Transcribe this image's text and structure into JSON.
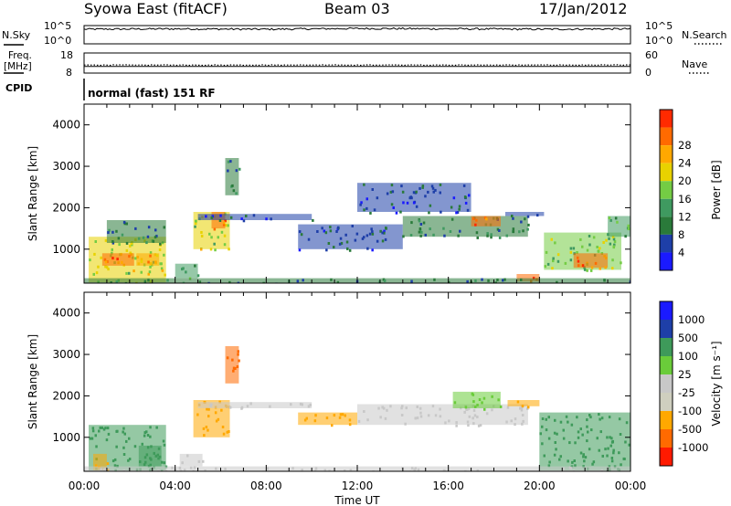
{
  "header": {
    "title": "Syowa East (fitACF)",
    "beam": "Beam 03",
    "date": "17/Jan/2012"
  },
  "top_panels": {
    "nsky_label": "N.Sky",
    "nsearch_label": "N.Search",
    "nsky_ticks": [
      "10^5",
      "10^0"
    ],
    "freq_label_1": "Freq.",
    "freq_label_2": "[MHz]",
    "freq_ticks": [
      "18",
      "8"
    ],
    "nave_ticks": [
      "60",
      "0"
    ],
    "nave_label": "Nave",
    "cpid_label": "CPID",
    "cpid_text": "normal (fast) 151 RF"
  },
  "x_axis": {
    "label": "Time UT",
    "ticks": [
      "00:00",
      "04:00",
      "08:00",
      "12:00",
      "16:00",
      "20:00",
      "00:00"
    ]
  },
  "colors": {
    "power": [
      "#1a1aff",
      "#1e3fa8",
      "#2a7a3a",
      "#3f9a60",
      "#74cc44",
      "#e8d200",
      "#ffa800",
      "#ff6a00",
      "#ff2a00"
    ],
    "velocity": [
      "#ff1a00",
      "#ff6a00",
      "#ffa800",
      "#cfcfbf",
      "#c8c8c8",
      "#6acc3a",
      "#3e9a5a",
      "#1e3fa8",
      "#1a1aff"
    ]
  },
  "chart_data": [
    {
      "type": "line",
      "title": "N.Sky / N.Search",
      "ylabel": "N.Sky",
      "y2label": "N.Search",
      "ylim": [
        0,
        5
      ],
      "yscale": "log10",
      "x": [
        "00:00",
        "04:00",
        "08:00",
        "12:00",
        "16:00",
        "20:00",
        "24:00"
      ],
      "series": [
        {
          "name": "N.Sky",
          "values": [
            4.0,
            4.1,
            4.0,
            4.2,
            4.1,
            4.0,
            4.1
          ]
        },
        {
          "name": "N.Search",
          "values": [
            4.1,
            4.1,
            4.0,
            4.1,
            4.1,
            4.1,
            4.1
          ]
        }
      ]
    },
    {
      "type": "line",
      "title": "Freq. / Nave",
      "ylabel": "Freq. [MHz]",
      "ylim": [
        8,
        18
      ],
      "y2label": "Nave",
      "y2lim": [
        0,
        60
      ],
      "x": [
        "00:00",
        "04:00",
        "08:00",
        "12:00",
        "16:00",
        "20:00",
        "24:00"
      ],
      "series": [
        {
          "name": "Freq.",
          "values": [
            12,
            12,
            12,
            12,
            12,
            12,
            12
          ]
        },
        {
          "name": "Nave",
          "values": [
            20,
            20,
            20,
            20,
            20,
            20,
            20
          ]
        }
      ]
    },
    {
      "type": "heatmap",
      "title": "Power",
      "xlabel": "Time UT",
      "ylabel": "Slant Range [km]",
      "xlim": [
        "00:00",
        "24:00"
      ],
      "ylim": [
        180,
        4500
      ],
      "yticks": [
        1000,
        2000,
        3000,
        4000
      ],
      "colorbar": {
        "label": "Power [dB]",
        "min": 0,
        "max": 32,
        "ticks": [
          4,
          8,
          12,
          16,
          20,
          24,
          28
        ]
      },
      "regions": [
        {
          "t0": 0.2,
          "t1": 3.6,
          "r0": 200,
          "r1": 1300,
          "value": 18
        },
        {
          "t0": 0.8,
          "t1": 2.2,
          "r0": 600,
          "r1": 900,
          "value": 26
        },
        {
          "t0": 2.3,
          "t1": 3.3,
          "r0": 600,
          "r1": 900,
          "value": 22
        },
        {
          "t0": 1.0,
          "t1": 3.6,
          "r0": 1150,
          "r1": 1700,
          "value": 8
        },
        {
          "t0": 4.0,
          "t1": 5.0,
          "r0": 300,
          "r1": 650,
          "value": 12
        },
        {
          "t0": 4.8,
          "t1": 6.4,
          "r0": 1000,
          "r1": 1900,
          "value": 18
        },
        {
          "t0": 5.6,
          "t1": 6.2,
          "r0": 1500,
          "r1": 1900,
          "value": 26
        },
        {
          "t0": 6.2,
          "t1": 6.8,
          "r0": 2300,
          "r1": 3200,
          "value": 8
        },
        {
          "t0": 5.0,
          "t1": 10.0,
          "r0": 1700,
          "r1": 1850,
          "value": 6
        },
        {
          "t0": 9.4,
          "t1": 14.0,
          "r0": 1000,
          "r1": 1600,
          "value": 6
        },
        {
          "t0": 14.0,
          "t1": 19.5,
          "r0": 1300,
          "r1": 1800,
          "value": 10
        },
        {
          "t0": 17.0,
          "t1": 18.3,
          "r0": 1550,
          "r1": 1800,
          "value": 26
        },
        {
          "t0": 12.0,
          "t1": 17.0,
          "r0": 1900,
          "r1": 2600,
          "value": 6
        },
        {
          "t0": 18.5,
          "t1": 20.2,
          "r0": 1800,
          "r1": 1900,
          "value": 6
        },
        {
          "t0": 19.0,
          "t1": 20.0,
          "r0": 220,
          "r1": 400,
          "value": 26
        },
        {
          "t0": 20.2,
          "t1": 23.6,
          "r0": 500,
          "r1": 1400,
          "value": 16
        },
        {
          "t0": 21.5,
          "t1": 23.0,
          "r0": 550,
          "r1": 900,
          "value": 26
        },
        {
          "t0": 23.0,
          "t1": 24.0,
          "r0": 1300,
          "r1": 1800,
          "value": 12
        },
        {
          "t0": 0.0,
          "t1": 24.0,
          "r0": 180,
          "r1": 300,
          "value": 8
        }
      ]
    },
    {
      "type": "heatmap",
      "title": "Velocity",
      "xlabel": "Time UT",
      "ylabel": "Slant Range [km]",
      "xlim": [
        "00:00",
        "24:00"
      ],
      "ylim": [
        180,
        4500
      ],
      "yticks": [
        1000,
        2000,
        3000,
        4000
      ],
      "colorbar": {
        "label": "Velocity [m s⁻¹]",
        "ticks": [
          1000,
          500,
          100,
          25,
          -25,
          -100,
          -500,
          -1000
        ]
      },
      "regions": [
        {
          "t0": 0.2,
          "t1": 3.6,
          "r0": 200,
          "r1": 1300,
          "value": 200
        },
        {
          "t0": 0.4,
          "t1": 1.0,
          "r0": 200,
          "r1": 600,
          "value": -300
        },
        {
          "t0": 2.4,
          "t1": 3.4,
          "r0": 300,
          "r1": 800,
          "value": 300
        },
        {
          "t0": 4.2,
          "t1": 5.2,
          "r0": 300,
          "r1": 600,
          "value": 0
        },
        {
          "t0": 4.8,
          "t1": 6.4,
          "r0": 1000,
          "r1": 1900,
          "value": -200
        },
        {
          "t0": 6.2,
          "t1": 6.8,
          "r0": 2300,
          "r1": 3200,
          "value": -600
        },
        {
          "t0": 5.0,
          "t1": 10.0,
          "r0": 1700,
          "r1": 1850,
          "value": 0
        },
        {
          "t0": 9.4,
          "t1": 12.0,
          "r0": 1300,
          "r1": 1600,
          "value": -200
        },
        {
          "t0": 12.0,
          "t1": 19.5,
          "r0": 1300,
          "r1": 1800,
          "value": 0
        },
        {
          "t0": 16.2,
          "t1": 18.3,
          "r0": 1700,
          "r1": 2100,
          "value": 80
        },
        {
          "t0": 18.6,
          "t1": 20.0,
          "r0": 1750,
          "r1": 1900,
          "value": -150
        },
        {
          "t0": 20.0,
          "t1": 24.0,
          "r0": 200,
          "r1": 1600,
          "value": 300
        },
        {
          "t0": 0.0,
          "t1": 24.0,
          "r0": 180,
          "r1": 300,
          "value": 0
        }
      ]
    }
  ]
}
